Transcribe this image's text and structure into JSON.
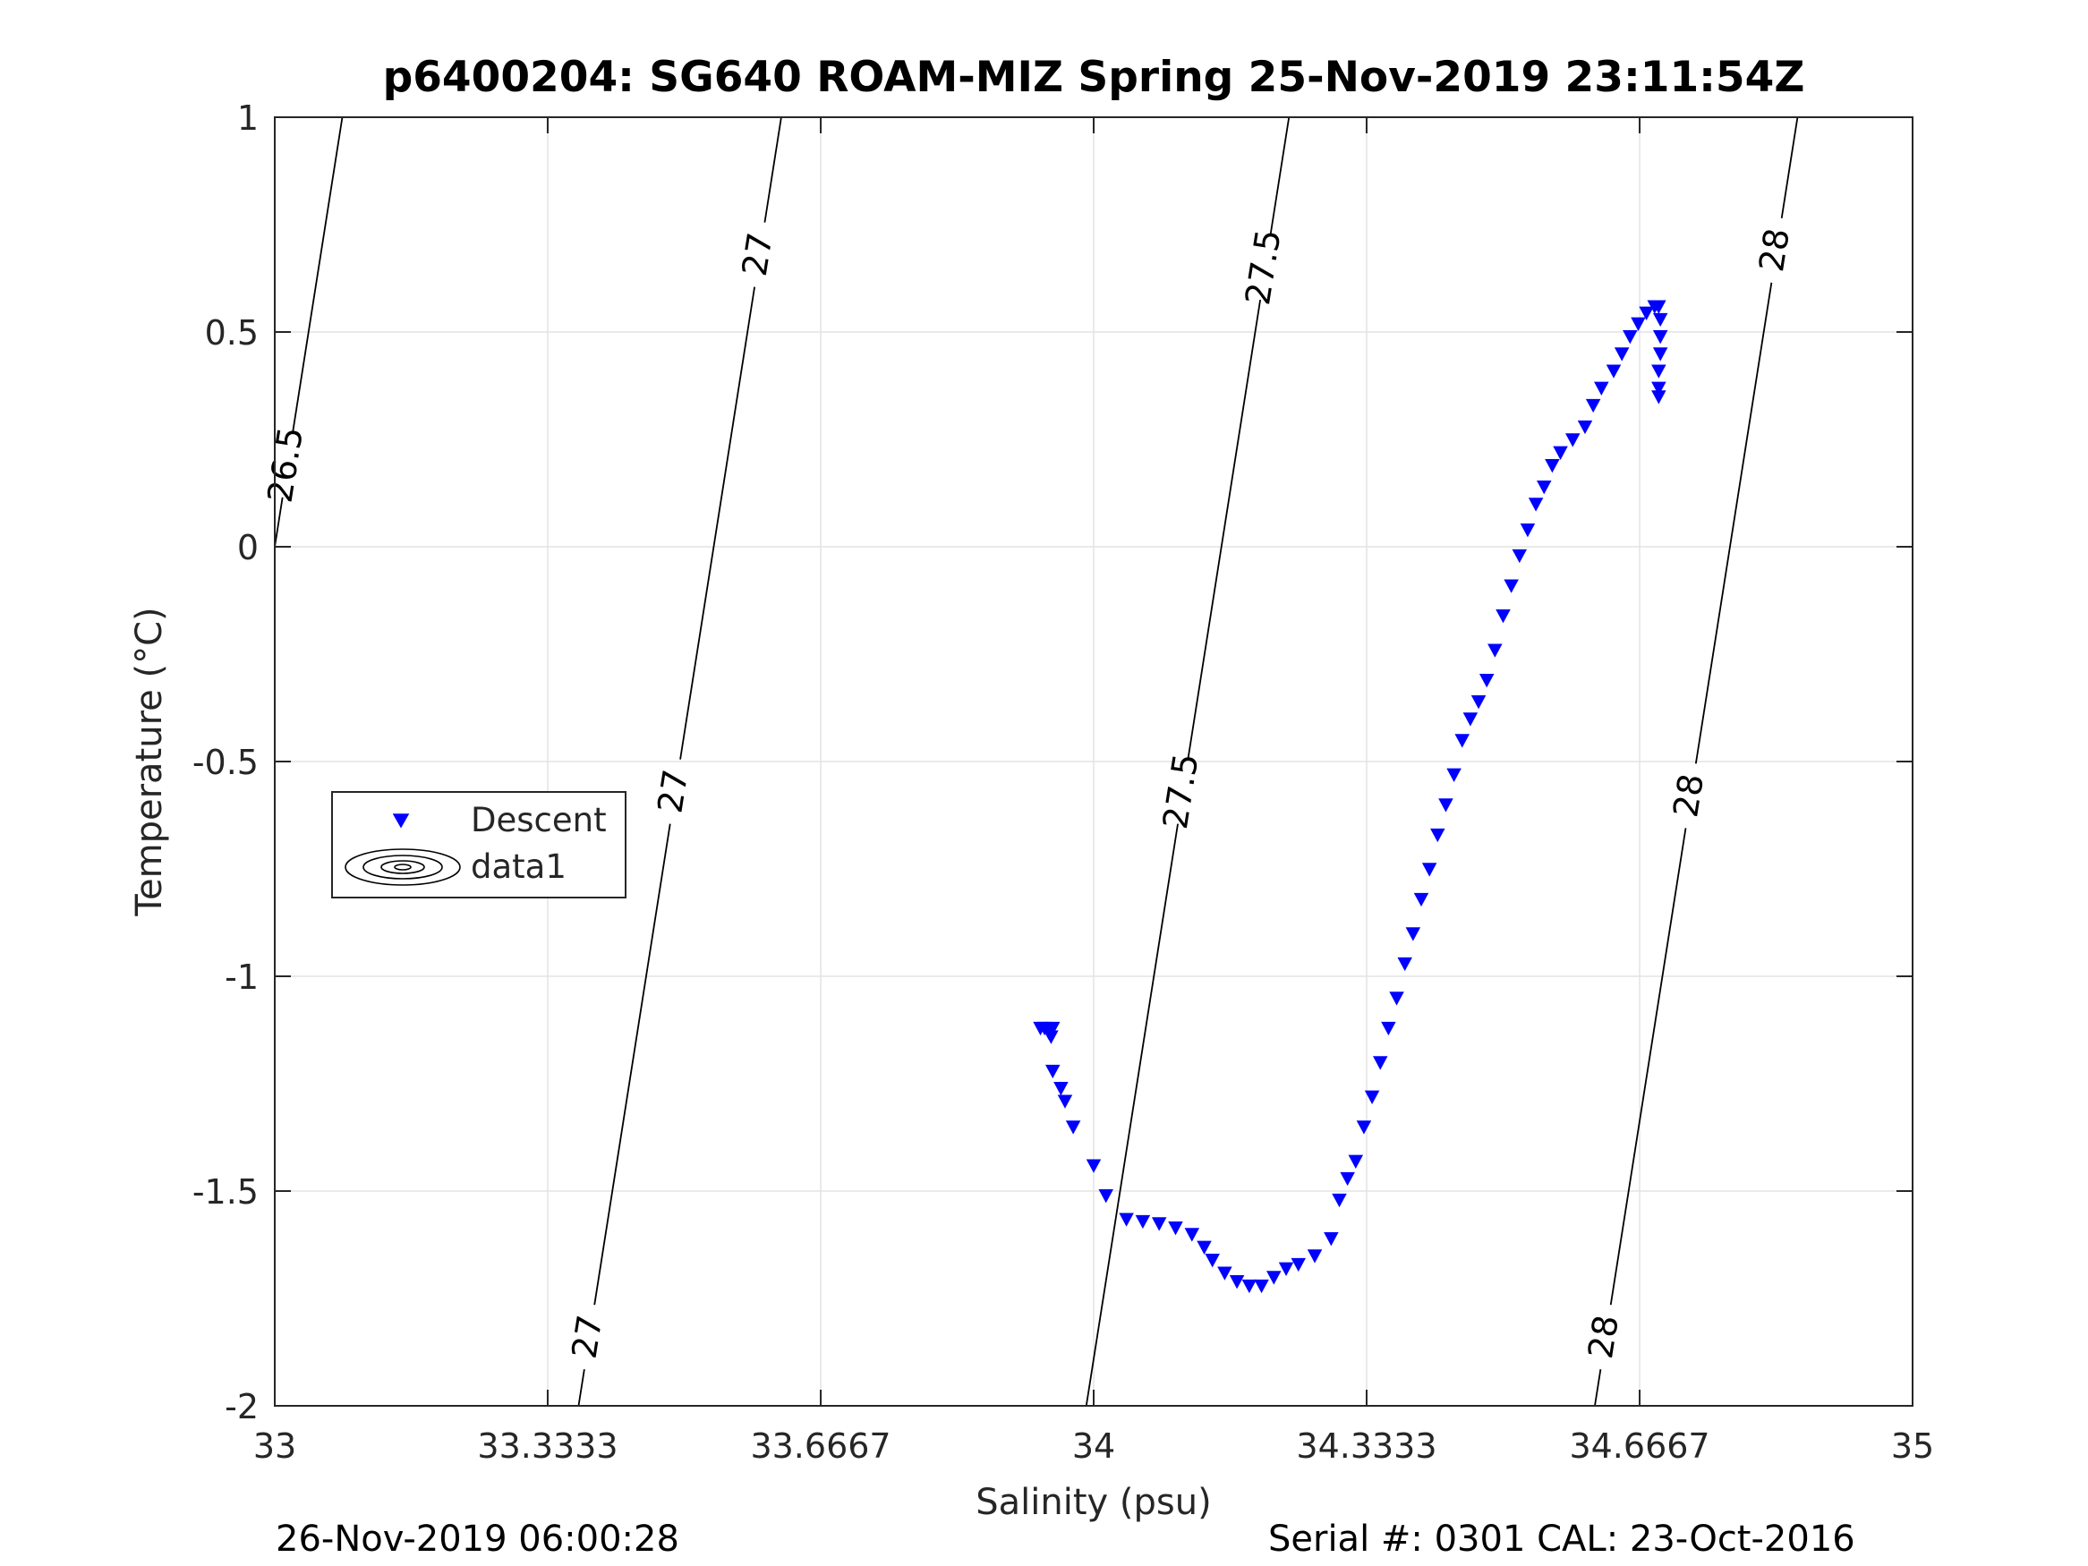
{
  "chart_data": {
    "type": "scatter",
    "title": "p6400204: SG640 ROAM-MIZ Spring 25-Nov-2019 23:11:54Z",
    "xlabel": "Salinity (psu)",
    "ylabel": "Temperature (°C)",
    "xlim": [
      33,
      35
    ],
    "ylim": [
      -2,
      1
    ],
    "xticks": [
      33,
      33.3333,
      33.6667,
      34,
      34.3333,
      34.6667,
      35
    ],
    "xtick_labels": [
      "33",
      "33.3333",
      "33.6667",
      "34",
      "34.3333",
      "34.6667",
      "35"
    ],
    "yticks": [
      -2,
      -1.5,
      -1,
      -0.5,
      0,
      0.5,
      1
    ],
    "ytick_labels": [
      "-2",
      "-1.5",
      "-1",
      "-0.5",
      "0",
      "0.5",
      "1"
    ],
    "grid": true,
    "legend": {
      "position": "left",
      "entries": [
        "Descent",
        "data1"
      ]
    },
    "series": [
      {
        "name": "Descent",
        "marker": "triangle-down",
        "color": "#0000ff",
        "points": [
          [
            33.935,
            -1.12
          ],
          [
            33.94,
            -1.12
          ],
          [
            33.945,
            -1.13
          ],
          [
            33.948,
            -1.14
          ],
          [
            33.95,
            -1.12
          ],
          [
            33.95,
            -1.22
          ],
          [
            33.96,
            -1.26
          ],
          [
            33.965,
            -1.29
          ],
          [
            33.975,
            -1.35
          ],
          [
            34.0,
            -1.44
          ],
          [
            34.015,
            -1.51
          ],
          [
            34.04,
            -1.565
          ],
          [
            34.06,
            -1.57
          ],
          [
            34.08,
            -1.575
          ],
          [
            34.1,
            -1.585
          ],
          [
            34.12,
            -1.6
          ],
          [
            34.135,
            -1.63
          ],
          [
            34.145,
            -1.66
          ],
          [
            34.16,
            -1.69
          ],
          [
            34.175,
            -1.71
          ],
          [
            34.19,
            -1.72
          ],
          [
            34.205,
            -1.72
          ],
          [
            34.22,
            -1.7
          ],
          [
            34.235,
            -1.68
          ],
          [
            34.25,
            -1.67
          ],
          [
            34.27,
            -1.65
          ],
          [
            34.29,
            -1.61
          ],
          [
            34.3,
            -1.52
          ],
          [
            34.31,
            -1.47
          ],
          [
            34.32,
            -1.43
          ],
          [
            34.33,
            -1.35
          ],
          [
            34.34,
            -1.28
          ],
          [
            34.35,
            -1.2
          ],
          [
            34.36,
            -1.12
          ],
          [
            34.37,
            -1.05
          ],
          [
            34.38,
            -0.97
          ],
          [
            34.39,
            -0.9
          ],
          [
            34.4,
            -0.82
          ],
          [
            34.41,
            -0.75
          ],
          [
            34.42,
            -0.67
          ],
          [
            34.43,
            -0.6
          ],
          [
            34.44,
            -0.53
          ],
          [
            34.45,
            -0.45
          ],
          [
            34.46,
            -0.4
          ],
          [
            34.47,
            -0.36
          ],
          [
            34.48,
            -0.31
          ],
          [
            34.49,
            -0.24
          ],
          [
            34.5,
            -0.16
          ],
          [
            34.51,
            -0.09
          ],
          [
            34.52,
            -0.02
          ],
          [
            34.53,
            0.04
          ],
          [
            34.54,
            0.1
          ],
          [
            34.55,
            0.14
          ],
          [
            34.56,
            0.19
          ],
          [
            34.57,
            0.22
          ],
          [
            34.585,
            0.25
          ],
          [
            34.6,
            0.28
          ],
          [
            34.61,
            0.33
          ],
          [
            34.62,
            0.37
          ],
          [
            34.635,
            0.41
          ],
          [
            34.645,
            0.45
          ],
          [
            34.655,
            0.49
          ],
          [
            34.665,
            0.52
          ],
          [
            34.675,
            0.545
          ],
          [
            34.685,
            0.56
          ],
          [
            34.69,
            0.56
          ],
          [
            34.692,
            0.53
          ],
          [
            34.692,
            0.49
          ],
          [
            34.692,
            0.45
          ],
          [
            34.69,
            0.41
          ],
          [
            34.69,
            0.37
          ],
          [
            34.69,
            0.35
          ]
        ]
      },
      {
        "name": "data1",
        "type": "contour",
        "levels": [
          {
            "level": "26.5",
            "labels": [
              "26.5"
            ]
          },
          {
            "level": "27",
            "labels": [
              "27",
              "27",
              "27"
            ]
          },
          {
            "level": "27.5",
            "labels": [
              "27.5",
              "27.5"
            ]
          },
          {
            "level": "28",
            "labels": [
              "28",
              "28",
              "28"
            ]
          }
        ]
      }
    ]
  },
  "footer": {
    "left": "26-Nov-2019 06:00:28",
    "right": "Serial #: 0301  CAL: 23-Oct-2016"
  }
}
